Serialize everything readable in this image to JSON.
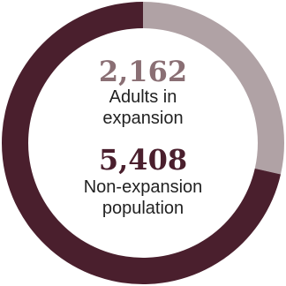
{
  "chart_data": {
    "type": "pie",
    "donut": true,
    "categories": [
      "Adults in expansion",
      "Non-expansion population"
    ],
    "values": [
      2162,
      5408
    ],
    "colors": [
      "#b0a2a5",
      "#4a1f2d"
    ],
    "title": "",
    "legend": "none"
  },
  "labels": {
    "a_value": "2,162",
    "a_line1": "Adults in",
    "a_line2": "expansion",
    "b_value": "5,408",
    "b_line1": "Non-expansion",
    "b_line2": "population"
  }
}
